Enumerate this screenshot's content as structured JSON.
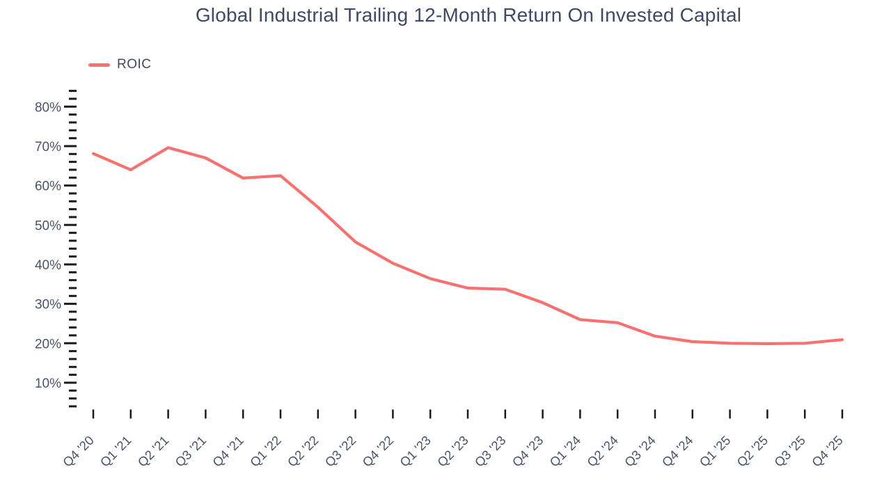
{
  "title": "Global Industrial Trailing 12-Month Return On Invested Capital",
  "legend": {
    "items": [
      {
        "label": "ROIC",
        "color": "#F87171"
      }
    ]
  },
  "colors": {
    "line": "#F87171",
    "title_text": "#3E4A63",
    "axis_label": "#4A5468",
    "tick": "#1A1A1A",
    "background": "#FFFFFF"
  },
  "chart_data": {
    "type": "line",
    "title": "Global Industrial Trailing 12-Month Return On Invested Capital",
    "xlabel": "",
    "ylabel": "",
    "y_unit": "%",
    "categories": [
      "Q4 '20",
      "Q1 '21",
      "Q2 '21",
      "Q3 '21",
      "Q4 '21",
      "Q1 '22",
      "Q2 '22",
      "Q3 '22",
      "Q4 '22",
      "Q1 '23",
      "Q2 '23",
      "Q3 '23",
      "Q4 '23",
      "Q1 '24",
      "Q2 '24",
      "Q3 '24",
      "Q4 '24",
      "Q1 '25",
      "Q2 '25",
      "Q3 '25",
      "Q4 '25"
    ],
    "series": [
      {
        "name": "ROIC",
        "color": "#F87171",
        "values": [
          68.1,
          64.0,
          69.6,
          67.0,
          61.9,
          62.5,
          54.5,
          45.7,
          40.3,
          36.4,
          34.0,
          33.7,
          30.3,
          26.0,
          25.2,
          21.8,
          20.4,
          20.0,
          19.9,
          20.0,
          20.9
        ]
      }
    ],
    "y_major_ticks": [
      10,
      20,
      30,
      40,
      50,
      60,
      70,
      80
    ],
    "y_major_tick_labels": [
      "10%",
      "20%",
      "30%",
      "40%",
      "50%",
      "60%",
      "70%",
      "80%"
    ],
    "y_minor_tick_step": 2,
    "ylim": [
      4,
      84
    ],
    "grid": false,
    "legend_position": "top-left"
  }
}
